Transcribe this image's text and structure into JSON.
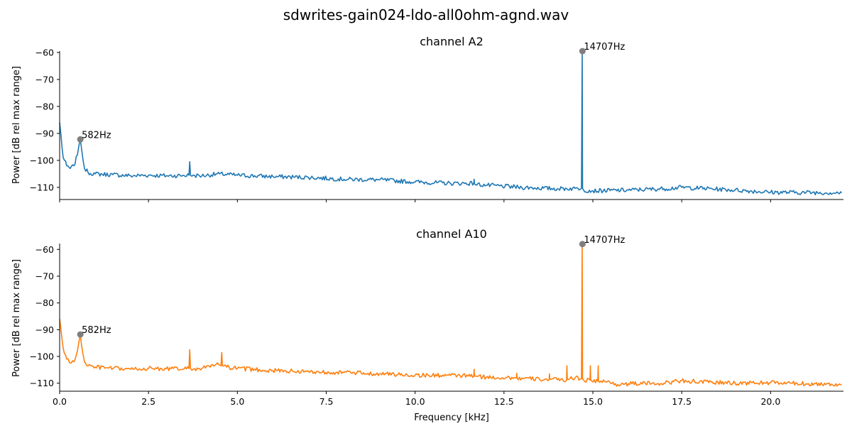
{
  "figure_title": "sdwrites-gain024-ldo-all0ohm-agnd.wav",
  "chart_data": [
    {
      "type": "line",
      "title": "channel A2",
      "xlabel": "",
      "ylabel": "Power [dB rel max range]",
      "xlim": [
        0,
        22.05
      ],
      "ylim": [
        -114.5,
        -59.5
      ],
      "xticks": [
        0,
        2.5,
        5,
        7.5,
        10,
        12.5,
        15,
        17.5,
        20
      ],
      "xtick_labels": [],
      "yticks": [
        -110,
        -100,
        -90,
        -80,
        -70,
        -60
      ],
      "ytick_labels": [
        "−110",
        "−100",
        "−90",
        "−80",
        "−70",
        "−60"
      ],
      "grid": false,
      "color": "#1f77b4",
      "series": [
        {
          "x": [
            0,
            0.1,
            0.2,
            0.3,
            0.4,
            0.5,
            0.55,
            0.58,
            0.62,
            0.7,
            0.8,
            1.0,
            1.5,
            2.0,
            2.5,
            3.0,
            3.5,
            3.64,
            3.66,
            3.68,
            3.8,
            4.0,
            4.5,
            5.0,
            6.0,
            7.0,
            8.0,
            9.0,
            10.0,
            11.0,
            11.65,
            11.66,
            11.67,
            12.0,
            13.0,
            14.0,
            14.5,
            14.68,
            14.7,
            14.71,
            14.74,
            15.0,
            16.0,
            17.0,
            17.5,
            18.0,
            19.0,
            20.0,
            21.0,
            22.0
          ],
          "y": [
            -86,
            -99,
            -102,
            -103,
            -102,
            -98,
            -94,
            -92,
            -96,
            -103,
            -104.5,
            -105,
            -105.3,
            -105.7,
            -105.5,
            -105.7,
            -105.6,
            -105.5,
            -100.5,
            -105.5,
            -105.6,
            -105.7,
            -105,
            -105.5,
            -106,
            -106.3,
            -107,
            -107.2,
            -108,
            -108.5,
            -108.5,
            -107,
            -108.8,
            -109.2,
            -110,
            -110.5,
            -110.4,
            -110.3,
            -59.5,
            -110.4,
            -111,
            -111.3,
            -111,
            -110.5,
            -110,
            -110.3,
            -111,
            -111.8,
            -111.9,
            -112
          ]
        }
      ],
      "markers": [
        {
          "x": 0.582,
          "y": -92.2,
          "label": "582Hz"
        },
        {
          "x": 14.707,
          "y": -59.5,
          "label": "14707Hz"
        }
      ]
    },
    {
      "type": "line",
      "title": "channel A10",
      "xlabel": "Frequency [kHz]",
      "ylabel": "Power [dB rel max range]",
      "xlim": [
        0,
        22.05
      ],
      "ylim": [
        -113,
        -57.8
      ],
      "xticks": [
        0,
        2.5,
        5,
        7.5,
        10,
        12.5,
        15,
        17.5,
        20
      ],
      "xtick_labels": [
        "0.0",
        "2.5",
        "5.0",
        "7.5",
        "10.0",
        "12.5",
        "15.0",
        "17.5",
        "20.0"
      ],
      "yticks": [
        -110,
        -100,
        -90,
        -80,
        -70,
        -60
      ],
      "ytick_labels": [
        "−110",
        "−100",
        "−90",
        "−80",
        "−70",
        "−60"
      ],
      "grid": false,
      "color": "#ff7f0e",
      "series": [
        {
          "x": [
            0,
            0.1,
            0.2,
            0.3,
            0.4,
            0.5,
            0.55,
            0.58,
            0.62,
            0.7,
            0.8,
            1.0,
            1.5,
            2.0,
            2.5,
            3.0,
            3.5,
            3.64,
            3.66,
            3.68,
            3.8,
            4.0,
            4.4,
            4.54,
            4.56,
            4.58,
            4.7,
            5.0,
            6.0,
            7.0,
            8.0,
            9.0,
            10.0,
            11.0,
            11.65,
            11.66,
            11.67,
            12.0,
            12.85,
            12.86,
            12.87,
            13.5,
            13.77,
            13.78,
            13.79,
            14.0,
            14.26,
            14.27,
            14.28,
            14.5,
            14.68,
            14.7,
            14.71,
            14.74,
            14.92,
            14.93,
            14.94,
            15.14,
            15.15,
            15.16,
            15.4,
            15.7,
            16.0,
            17.0,
            17.5,
            18.0,
            19.0,
            20.0,
            21.0,
            22.0
          ],
          "y": [
            -86,
            -97,
            -101,
            -102.5,
            -102,
            -98,
            -94,
            -92,
            -96,
            -102,
            -103.5,
            -104,
            -104.5,
            -104.8,
            -104.5,
            -104.6,
            -104.7,
            -104.5,
            -97.5,
            -104.5,
            -104.6,
            -104.5,
            -103,
            -103.5,
            -98.5,
            -103.5,
            -104,
            -104.5,
            -105.3,
            -105.7,
            -106,
            -106.5,
            -107,
            -107.1,
            -107.3,
            -104.8,
            -107.4,
            -107.8,
            -108,
            -106.3,
            -108.2,
            -108.5,
            -108.6,
            -106.5,
            -108.6,
            -108.7,
            -108.8,
            -103.5,
            -108.5,
            -108,
            -108.3,
            -58,
            -108.5,
            -108.8,
            -108.8,
            -103.5,
            -109,
            -109.2,
            -103.5,
            -109.3,
            -109.5,
            -110.5,
            -110.2,
            -110,
            -109,
            -109.5,
            -110,
            -109.8,
            -110.2,
            -110.5
          ]
        }
      ],
      "markers": [
        {
          "x": 0.582,
          "y": -91.8,
          "label": "582Hz"
        },
        {
          "x": 14.707,
          "y": -58,
          "label": "14707Hz"
        }
      ]
    }
  ]
}
